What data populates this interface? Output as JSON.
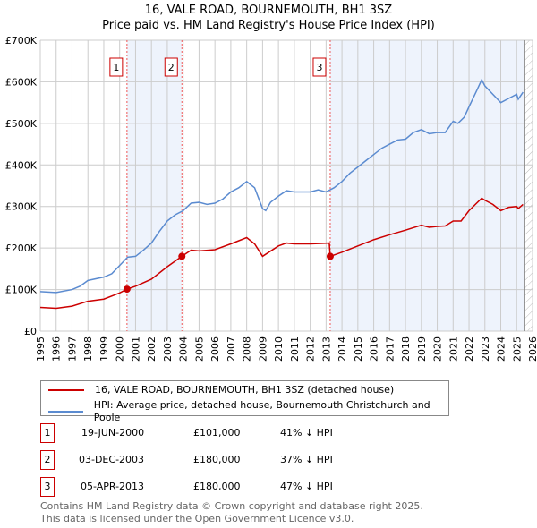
{
  "title": "16, VALE ROAD, BOURNEMOUTH, BH1 3SZ",
  "subtitle": "Price paid vs. HM Land Registry's House Price Index (HPI)",
  "chart_data": {
    "type": "line",
    "xlim": [
      1995,
      2026
    ],
    "ylim": [
      0,
      700000
    ],
    "yticks": [
      {
        "v": 0,
        "l": "£0"
      },
      {
        "v": 100000,
        "l": "£100K"
      },
      {
        "v": 200000,
        "l": "£200K"
      },
      {
        "v": 300000,
        "l": "£300K"
      },
      {
        "v": 400000,
        "l": "£400K"
      },
      {
        "v": 500000,
        "l": "£500K"
      },
      {
        "v": 600000,
        "l": "£600K"
      },
      {
        "v": 700000,
        "l": "£700K"
      }
    ],
    "xticks": [
      "1995",
      "1996",
      "1997",
      "1998",
      "1999",
      "2000",
      "2001",
      "2002",
      "2003",
      "2004",
      "2005",
      "2006",
      "2007",
      "2008",
      "2009",
      "2010",
      "2011",
      "2012",
      "2013",
      "2014",
      "2015",
      "2016",
      "2017",
      "2018",
      "2019",
      "2020",
      "2021",
      "2022",
      "2023",
      "2024",
      "2025",
      "2026"
    ],
    "series": [
      {
        "name": "16, VALE ROAD, BOURNEMOUTH, BH1 3SZ (detached house)",
        "color": "#cc0000",
        "points": [
          [
            1995,
            57
          ],
          [
            1996,
            55
          ],
          [
            1997,
            60
          ],
          [
            1998,
            72
          ],
          [
            1999,
            77
          ],
          [
            2000,
            92
          ],
          [
            2000.46,
            101
          ],
          [
            2001,
            108
          ],
          [
            2002,
            125
          ],
          [
            2003,
            155
          ],
          [
            2003.92,
            180
          ],
          [
            2004.5,
            195
          ],
          [
            2005,
            193
          ],
          [
            2006,
            196
          ],
          [
            2007,
            210
          ],
          [
            2008,
            225
          ],
          [
            2008.5,
            210
          ],
          [
            2009,
            180
          ],
          [
            2010,
            205
          ],
          [
            2010.5,
            212
          ],
          [
            2011,
            210
          ],
          [
            2012,
            210
          ],
          [
            2013.2,
            212
          ],
          [
            2013.26,
            180
          ],
          [
            2014,
            190
          ],
          [
            2015,
            205
          ],
          [
            2016,
            220
          ],
          [
            2017,
            232
          ],
          [
            2018,
            243
          ],
          [
            2019,
            255
          ],
          [
            2019.5,
            250
          ],
          [
            2020,
            252
          ],
          [
            2020.5,
            253
          ],
          [
            2021,
            265
          ],
          [
            2021.5,
            265
          ],
          [
            2022,
            290
          ],
          [
            2022.8,
            320
          ],
          [
            2023,
            315
          ],
          [
            2023.5,
            305
          ],
          [
            2024,
            290
          ],
          [
            2024.5,
            298
          ],
          [
            2025,
            300
          ],
          [
            2025.1,
            295
          ],
          [
            2025.4,
            305
          ]
        ]
      },
      {
        "name": "HPI: Average price, detached house, Bournemouth Christchurch and Poole",
        "color": "#5b8bd0",
        "points": [
          [
            1995,
            95
          ],
          [
            1996,
            93
          ],
          [
            1997,
            100
          ],
          [
            1997.5,
            108
          ],
          [
            1998,
            122
          ],
          [
            1999,
            130
          ],
          [
            1999.5,
            138
          ],
          [
            2000,
            158
          ],
          [
            2000.5,
            178
          ],
          [
            2001,
            180
          ],
          [
            2001.5,
            195
          ],
          [
            2002,
            212
          ],
          [
            2002.5,
            240
          ],
          [
            2003,
            265
          ],
          [
            2003.5,
            280
          ],
          [
            2004,
            290
          ],
          [
            2004.5,
            308
          ],
          [
            2005,
            310
          ],
          [
            2005.5,
            305
          ],
          [
            2006,
            308
          ],
          [
            2006.5,
            318
          ],
          [
            2007,
            335
          ],
          [
            2007.5,
            345
          ],
          [
            2008,
            360
          ],
          [
            2008.5,
            345
          ],
          [
            2009,
            295
          ],
          [
            2009.2,
            290
          ],
          [
            2009.5,
            310
          ],
          [
            2010,
            325
          ],
          [
            2010.5,
            338
          ],
          [
            2011,
            335
          ],
          [
            2012,
            335
          ],
          [
            2012.5,
            340
          ],
          [
            2013,
            335
          ],
          [
            2013.5,
            345
          ],
          [
            2014,
            360
          ],
          [
            2014.5,
            380
          ],
          [
            2015,
            395
          ],
          [
            2015.5,
            410
          ],
          [
            2016,
            425
          ],
          [
            2016.5,
            440
          ],
          [
            2017,
            450
          ],
          [
            2017.5,
            460
          ],
          [
            2018,
            462
          ],
          [
            2018.5,
            478
          ],
          [
            2019,
            485
          ],
          [
            2019.5,
            475
          ],
          [
            2020,
            478
          ],
          [
            2020.5,
            478
          ],
          [
            2021,
            505
          ],
          [
            2021.3,
            500
          ],
          [
            2021.7,
            515
          ],
          [
            2022,
            540
          ],
          [
            2022.5,
            580
          ],
          [
            2022.8,
            605
          ],
          [
            2023,
            590
          ],
          [
            2023.5,
            570
          ],
          [
            2024,
            550
          ],
          [
            2024.5,
            560
          ],
          [
            2025,
            570
          ],
          [
            2025.1,
            558
          ],
          [
            2025.4,
            575
          ]
        ]
      }
    ],
    "value_unit": "thousands GBP",
    "sales": [
      {
        "n": "1",
        "x": 2000.46,
        "y": 101
      },
      {
        "n": "2",
        "x": 2003.92,
        "y": 180
      },
      {
        "n": "3",
        "x": 2013.26,
        "y": 180
      }
    ],
    "shaded": [
      [
        2000.46,
        2003.92
      ],
      [
        2013.26,
        2025.5
      ]
    ],
    "data_end": 2025.5
  },
  "legend": {
    "red": "16, VALE ROAD, BOURNEMOUTH, BH1 3SZ (detached house)",
    "blue": "HPI: Average price, detached house, Bournemouth Christchurch and Poole"
  },
  "transactions": [
    {
      "n": "1",
      "date": "19-JUN-2000",
      "price": "£101,000",
      "hpi": "41% ↓ HPI"
    },
    {
      "n": "2",
      "date": "03-DEC-2003",
      "price": "£180,000",
      "hpi": "37% ↓ HPI"
    },
    {
      "n": "3",
      "date": "05-APR-2013",
      "price": "£180,000",
      "hpi": "47% ↓ HPI"
    }
  ],
  "footer": [
    "Contains HM Land Registry data © Crown copyright and database right 2025.",
    "This data is licensed under the Open Government Licence v3.0."
  ]
}
